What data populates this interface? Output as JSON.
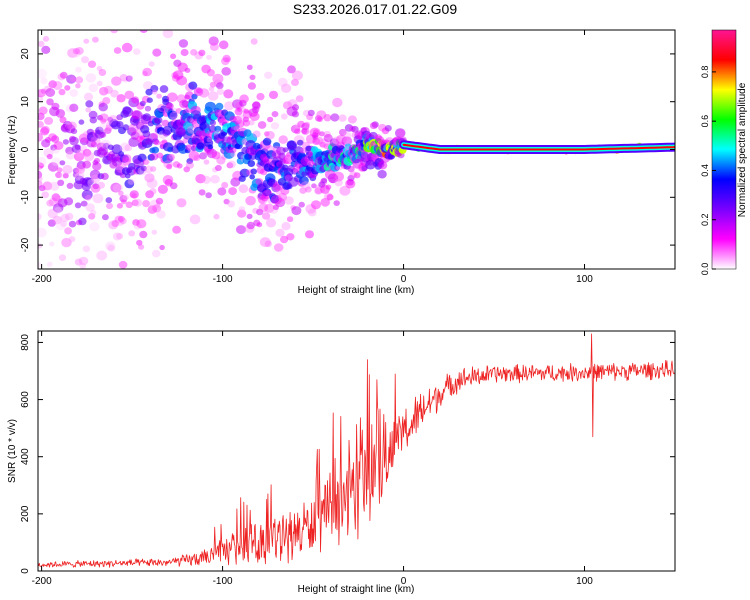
{
  "chart_data": [
    {
      "type": "heatmap",
      "title": "S233.2026.017.01.22.G09",
      "xlabel": "Height of straight line (km)",
      "ylabel": "Frequency (Hz)",
      "xlim": [
        -202,
        150
      ],
      "ylim": [
        -25,
        25
      ],
      "x_ticks": [
        -200,
        -100,
        0,
        100
      ],
      "y_ticks": [
        20,
        10,
        0,
        -10,
        -20
      ],
      "x_tick_labels": [
        "-200",
        "-100",
        "0",
        "100"
      ],
      "y_tick_labels": [
        "20",
        "10",
        "0",
        "-10",
        "-20"
      ],
      "colorbar": {
        "label": "Normalized spectral amplitude",
        "range": [
          0,
          0.97
        ],
        "ticks": [
          0,
          0.2,
          0.4,
          0.6,
          0.8
        ],
        "tick_labels": [
          "0.0",
          "0.2",
          "0.4",
          "0.6",
          "0.8"
        ],
        "colors": [
          "#ffffff",
          "#ff00ff",
          "#7a00ff",
          "#0000ff",
          "#00ffff",
          "#00ff00",
          "#ffff00",
          "#ff0000",
          "#ff1493"
        ]
      },
      "ridge": [
        {
          "x": -200,
          "f": 1.0,
          "amp": 0.15,
          "width": 14.0
        },
        {
          "x": -180,
          "f": -1.0,
          "amp": 0.22,
          "width": 12.0
        },
        {
          "x": -160,
          "f": 0.0,
          "amp": 0.25,
          "width": 10.0
        },
        {
          "x": -140,
          "f": 4.0,
          "amp": 0.35,
          "width": 8.0
        },
        {
          "x": -120,
          "f": 6.0,
          "amp": 0.4,
          "width": 6.0
        },
        {
          "x": -100,
          "f": 4.0,
          "amp": 0.42,
          "width": 5.0
        },
        {
          "x": -85,
          "f": -1.0,
          "amp": 0.4,
          "width": 5.0
        },
        {
          "x": -70,
          "f": -5.0,
          "amp": 0.35,
          "width": 5.0
        },
        {
          "x": -60,
          "f": -2.0,
          "amp": 0.4,
          "width": 4.0
        },
        {
          "x": -45,
          "f": -2.0,
          "amp": 0.45,
          "width": 3.0
        },
        {
          "x": -30,
          "f": -1.0,
          "amp": 0.5,
          "width": 2.0
        },
        {
          "x": -20,
          "f": 1.0,
          "amp": 0.6,
          "width": 1.5
        },
        {
          "x": -10,
          "f": 0.0,
          "amp": 0.8,
          "width": 1.0
        },
        {
          "x": 0,
          "f": 1.0,
          "amp": 0.7,
          "width": 1.0
        },
        {
          "x": 10,
          "f": 0.5,
          "amp": 0.65,
          "width": 1.0
        },
        {
          "x": 20,
          "f": 0.0,
          "amp": 0.85,
          "width": 0.8
        },
        {
          "x": 100,
          "f": 0.0,
          "amp": 0.95,
          "width": 0.8
        },
        {
          "x": 150,
          "f": 0.5,
          "amp": 0.65,
          "width": 1.0
        }
      ]
    },
    {
      "type": "line",
      "xlabel": "Height of straight line (km)",
      "ylabel": "SNR (10 * v/v)",
      "xlim": [
        -202,
        150
      ],
      "ylim": [
        0,
        840
      ],
      "x_ticks": [
        -200,
        -100,
        0,
        100
      ],
      "y_ticks": [
        0,
        200,
        400,
        600,
        800
      ],
      "x_tick_labels": [
        "-200",
        "-100",
        "0",
        "100"
      ],
      "y_tick_labels": [
        "0",
        "200",
        "400",
        "600",
        "800"
      ],
      "series": [
        {
          "name": "SNR",
          "color": "#ee2222",
          "envelope": [
            {
              "x": -202,
              "mean": 22,
              "noise": 10
            },
            {
              "x": -130,
              "mean": 30,
              "noise": 14
            },
            {
              "x": -110,
              "mean": 45,
              "noise": 28
            },
            {
              "x": -90,
              "mean": 90,
              "noise": 60
            },
            {
              "x": -70,
              "mean": 110,
              "noise": 80
            },
            {
              "x": -50,
              "mean": 160,
              "noise": 100
            },
            {
              "x": -30,
              "mean": 260,
              "noise": 140
            },
            {
              "x": -20,
              "mean": 300,
              "noise": 150
            },
            {
              "x": -10,
              "mean": 380,
              "noise": 100
            },
            {
              "x": 0,
              "mean": 480,
              "noise": 90
            },
            {
              "x": 10,
              "mean": 560,
              "noise": 70
            },
            {
              "x": 20,
              "mean": 620,
              "noise": 50
            },
            {
              "x": 30,
              "mean": 670,
              "noise": 40
            },
            {
              "x": 50,
              "mean": 690,
              "noise": 30
            },
            {
              "x": 100,
              "mean": 695,
              "noise": 30
            },
            {
              "x": 150,
              "mean": 705,
              "noise": 30
            }
          ],
          "spikes": [
            {
              "x": -75,
              "value": 270
            },
            {
              "x": -20,
              "value": 740
            },
            {
              "x": -14,
              "value": 560
            },
            {
              "x": -10,
              "value": 520
            },
            {
              "x": 104,
              "value": 830
            },
            {
              "x": 104.6,
              "value": 470
            }
          ]
        }
      ]
    }
  ]
}
